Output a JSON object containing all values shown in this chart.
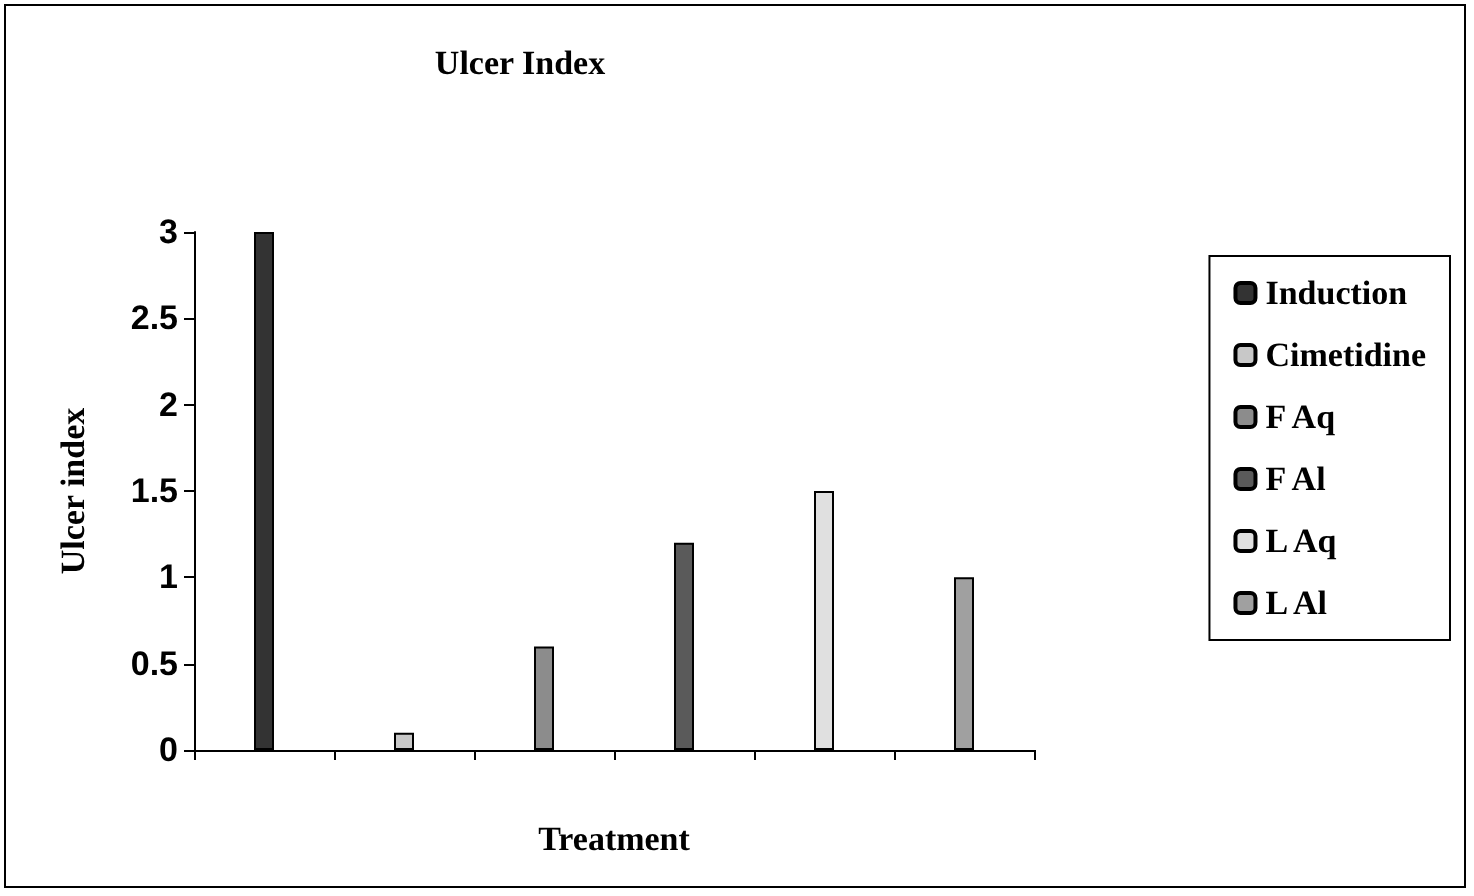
{
  "chart_data": {
    "type": "bar",
    "title": "Ulcer Index",
    "xlabel": "Treatment",
    "ylabel": "Ulcer index",
    "categories": [
      null,
      null,
      null,
      null,
      null,
      null
    ],
    "series": [
      {
        "name": "Induction",
        "color": "#333333",
        "values": [
          3,
          null,
          null,
          null,
          null,
          null
        ]
      },
      {
        "name": "Cimetidine",
        "color": "#c8c8c8",
        "values": [
          null,
          0.1,
          null,
          null,
          null,
          null
        ]
      },
      {
        "name": "F Aq",
        "color": "#8c8c8c",
        "values": [
          null,
          null,
          0.6,
          null,
          null,
          null
        ]
      },
      {
        "name": "F Al",
        "color": "#5a5a5a",
        "values": [
          null,
          null,
          null,
          1.2,
          null,
          null
        ]
      },
      {
        "name": "L Aq",
        "color": "#e0e0e0",
        "values": [
          null,
          null,
          null,
          null,
          1.5,
          null
        ]
      },
      {
        "name": "L Al",
        "color": "#a0a0a0",
        "values": [
          null,
          null,
          null,
          null,
          null,
          1
        ]
      }
    ],
    "ylim": [
      0,
      3
    ],
    "yticks": [
      0,
      0.5,
      1,
      1.5,
      2,
      2.5,
      3
    ],
    "grid": false,
    "legend": "right"
  }
}
